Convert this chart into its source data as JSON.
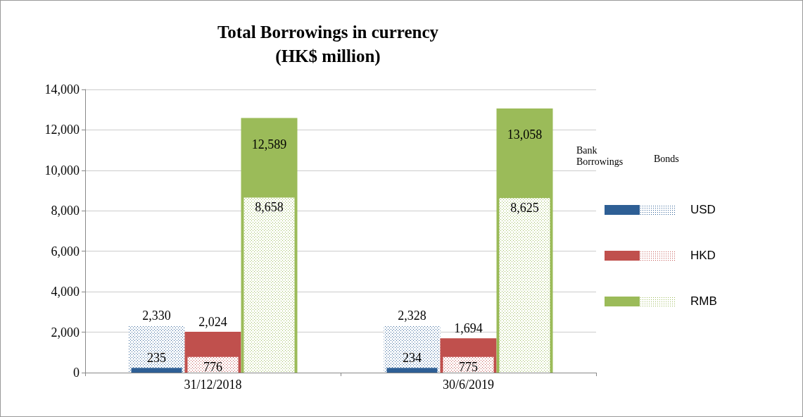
{
  "chart_data": {
    "type": "bar",
    "title": "Total Borrowings in currency\n(HK$ million)",
    "categories": [
      "31/12/2018",
      "30/6/2019"
    ],
    "series": [
      {
        "name": "USD",
        "color": "#2e5f95",
        "values": [
          235,
          234
        ],
        "value_labels": [
          "235",
          "234"
        ]
      },
      {
        "color": "#2e5f95",
        "values": [
          2330,
          2328
        ],
        "value_labels": [
          "2,330",
          "2,328"
        ]
      },
      {
        "name": "HKD",
        "color": "#c0504d",
        "values": [
          2024,
          1694
        ],
        "value_labels": [
          "2,024",
          "1,694"
        ]
      },
      {
        "color": "#c0504d",
        "values": [
          776,
          775
        ],
        "value_labels": [
          "776",
          "775"
        ]
      },
      {
        "name": "RMB",
        "color": "#9bbb59",
        "values": [
          12589,
          13058
        ],
        "value_labels": [
          "12,589",
          "13,058"
        ]
      },
      {
        "color": "#9bbb59",
        "values": [
          8658,
          8625
        ],
        "value_labels": [
          "8,658",
          "8,625"
        ]
      }
    ],
    "ylim": [
      0,
      14000
    ],
    "yticks": [
      0,
      {
        "value": 2000,
        "label": "2,000"
      },
      {
        "value": 4000,
        "label": "4,000"
      },
      {
        "value": 6000,
        "label": "6,000"
      },
      {
        "value": 8000,
        "label": "8,000"
      },
      {
        "value": 10000,
        "label": "10,000"
      },
      {
        "value": 12000,
        "label": "12,000"
      },
      {
        "value": 14000,
        "label": "14,000"
      }
    ],
    "grid": "y",
    "legend": "right",
    "annotations": [
      "Bank\nBorrowings",
      "Bonds"
    ]
  }
}
